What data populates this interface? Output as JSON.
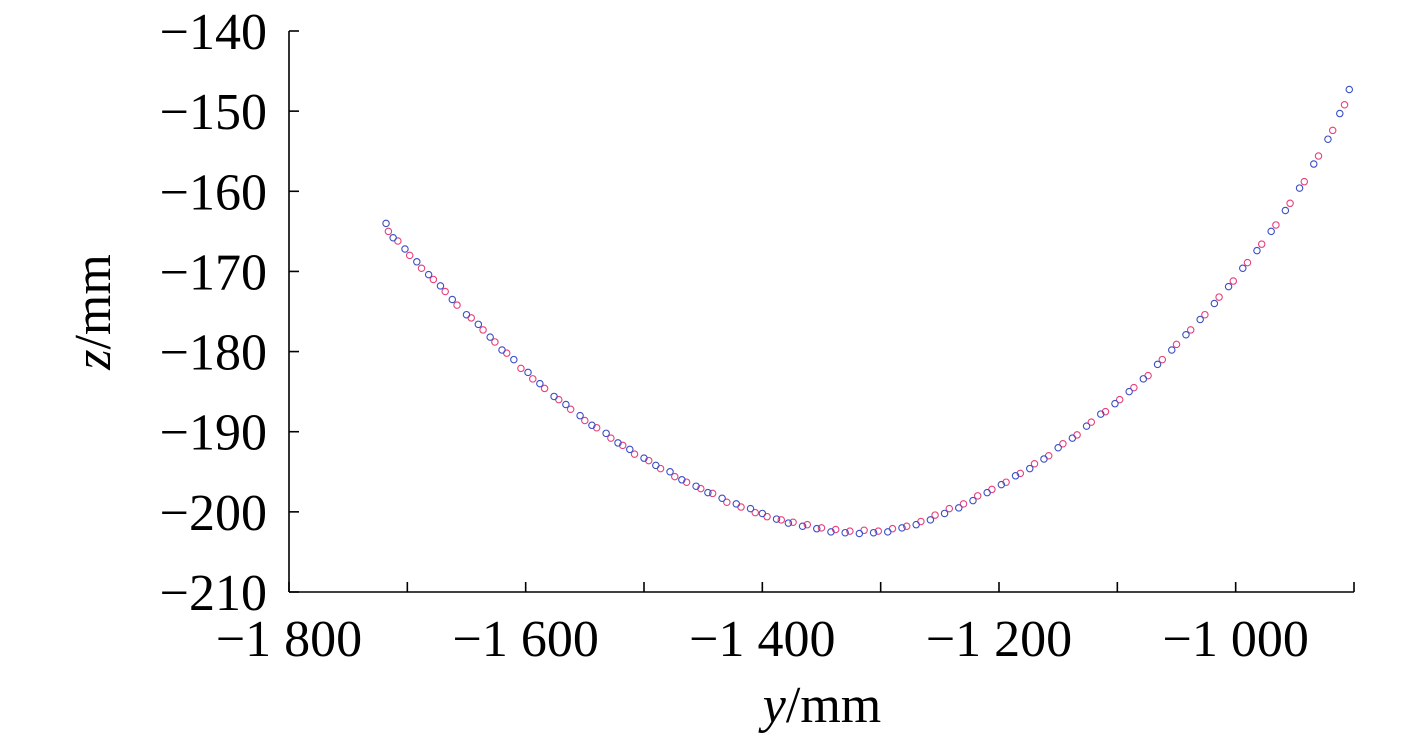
{
  "chart_data": {
    "type": "scatter",
    "title": "",
    "xlabel": {
      "var": "y",
      "unit": "/mm"
    },
    "ylabel": {
      "var": "z",
      "unit": "/mm"
    },
    "xlim": [
      -1800,
      -900
    ],
    "ylim": [
      -210,
      -140
    ],
    "x_ticks": [
      -1800,
      -1600,
      -1400,
      -1200,
      -1000
    ],
    "x_tick_labels": [
      "−1 800",
      "−1 600",
      "−1 400",
      "−1 200",
      "−1 000"
    ],
    "x_minor_ticks": [
      -1700,
      -1500,
      -1300,
      -1100,
      -900
    ],
    "y_ticks": [
      -140,
      -150,
      -160,
      -170,
      -180,
      -190,
      -200,
      -210
    ],
    "y_tick_labels": [
      "−140",
      "−150",
      "−160",
      "−170",
      "−180",
      "−190",
      "−200",
      "−210"
    ],
    "grid": false,
    "legend": "none",
    "series": [
      {
        "color": "#e8407a",
        "marker": "open-circle",
        "points": [
          [
            -1716,
            -165.0
          ],
          [
            -1708,
            -166.2
          ],
          [
            -1698,
            -168.0
          ],
          [
            -1688,
            -169.6
          ],
          [
            -1678,
            -171.0
          ],
          [
            -1668,
            -172.5
          ],
          [
            -1658,
            -174.2
          ],
          [
            -1646,
            -175.8
          ],
          [
            -1636,
            -177.3
          ],
          [
            -1626,
            -178.8
          ],
          [
            -1616,
            -180.2
          ],
          [
            -1604,
            -182.1
          ],
          [
            -1594,
            -183.4
          ],
          [
            -1584,
            -184.6
          ],
          [
            -1572,
            -186.0
          ],
          [
            -1562,
            -187.2
          ],
          [
            -1550,
            -188.6
          ],
          [
            -1540,
            -189.5
          ],
          [
            -1528,
            -190.8
          ],
          [
            -1518,
            -191.7
          ],
          [
            -1508,
            -192.8
          ],
          [
            -1496,
            -193.6
          ],
          [
            -1486,
            -194.6
          ],
          [
            -1474,
            -195.6
          ],
          [
            -1464,
            -196.3
          ],
          [
            -1452,
            -197.1
          ],
          [
            -1442,
            -197.7
          ],
          [
            -1430,
            -198.8
          ],
          [
            -1418,
            -199.4
          ],
          [
            -1406,
            -200.1
          ],
          [
            -1396,
            -200.6
          ],
          [
            -1384,
            -201.0
          ],
          [
            -1374,
            -201.3
          ],
          [
            -1362,
            -201.6
          ],
          [
            -1350,
            -202.0
          ],
          [
            -1338,
            -202.2
          ],
          [
            -1326,
            -202.4
          ],
          [
            -1314,
            -202.3
          ],
          [
            -1302,
            -202.4
          ],
          [
            -1290,
            -202.1
          ],
          [
            -1278,
            -201.8
          ],
          [
            -1266,
            -201.2
          ],
          [
            -1254,
            -200.4
          ],
          [
            -1242,
            -199.6
          ],
          [
            -1230,
            -199.0
          ],
          [
            -1218,
            -198.0
          ],
          [
            -1206,
            -197.2
          ],
          [
            -1194,
            -196.3
          ],
          [
            -1182,
            -195.2
          ],
          [
            -1170,
            -194.0
          ],
          [
            -1158,
            -193.0
          ],
          [
            -1146,
            -191.5
          ],
          [
            -1134,
            -190.4
          ],
          [
            -1122,
            -188.8
          ],
          [
            -1110,
            -187.5
          ],
          [
            -1098,
            -186.0
          ],
          [
            -1086,
            -184.5
          ],
          [
            -1074,
            -183.0
          ],
          [
            -1062,
            -181.0
          ],
          [
            -1050,
            -179.1
          ],
          [
            -1038,
            -177.3
          ],
          [
            -1026,
            -175.4
          ],
          [
            -1014,
            -173.2
          ],
          [
            -1002,
            -171.2
          ],
          [
            -990,
            -168.9
          ],
          [
            -978,
            -166.6
          ],
          [
            -966,
            -164.2
          ],
          [
            -954,
            -161.5
          ],
          [
            -942,
            -158.8
          ],
          [
            -930,
            -155.6
          ],
          [
            -918,
            -152.4
          ],
          [
            -908,
            -149.2
          ]
        ]
      },
      {
        "color": "#3a4fc4",
        "marker": "open-circle",
        "points": [
          [
            -1718,
            -164.0
          ],
          [
            -1712,
            -165.8
          ],
          [
            -1702,
            -167.2
          ],
          [
            -1692,
            -168.8
          ],
          [
            -1682,
            -170.4
          ],
          [
            -1672,
            -171.8
          ],
          [
            -1662,
            -173.5
          ],
          [
            -1650,
            -175.4
          ],
          [
            -1640,
            -176.6
          ],
          [
            -1630,
            -178.2
          ],
          [
            -1620,
            -179.8
          ],
          [
            -1610,
            -181.0
          ],
          [
            -1598,
            -182.6
          ],
          [
            -1588,
            -184.0
          ],
          [
            -1576,
            -185.6
          ],
          [
            -1566,
            -186.6
          ],
          [
            -1554,
            -188.0
          ],
          [
            -1544,
            -189.2
          ],
          [
            -1532,
            -190.2
          ],
          [
            -1522,
            -191.4
          ],
          [
            -1512,
            -192.2
          ],
          [
            -1500,
            -193.3
          ],
          [
            -1490,
            -194.2
          ],
          [
            -1478,
            -195.0
          ],
          [
            -1468,
            -196.0
          ],
          [
            -1456,
            -196.8
          ],
          [
            -1446,
            -197.6
          ],
          [
            -1434,
            -198.3
          ],
          [
            -1422,
            -199.0
          ],
          [
            -1410,
            -199.6
          ],
          [
            -1400,
            -200.2
          ],
          [
            -1388,
            -200.9
          ],
          [
            -1378,
            -201.4
          ],
          [
            -1366,
            -201.8
          ],
          [
            -1354,
            -202.1
          ],
          [
            -1342,
            -202.5
          ],
          [
            -1330,
            -202.6
          ],
          [
            -1318,
            -202.7
          ],
          [
            -1306,
            -202.6
          ],
          [
            -1294,
            -202.5
          ],
          [
            -1282,
            -202.0
          ],
          [
            -1270,
            -201.6
          ],
          [
            -1258,
            -201.0
          ],
          [
            -1246,
            -200.2
          ],
          [
            -1234,
            -199.5
          ],
          [
            -1222,
            -198.6
          ],
          [
            -1210,
            -197.6
          ],
          [
            -1198,
            -196.6
          ],
          [
            -1186,
            -195.5
          ],
          [
            -1174,
            -194.6
          ],
          [
            -1162,
            -193.4
          ],
          [
            -1150,
            -192.0
          ],
          [
            -1138,
            -190.8
          ],
          [
            -1126,
            -189.3
          ],
          [
            -1114,
            -187.8
          ],
          [
            -1102,
            -186.5
          ],
          [
            -1090,
            -185.0
          ],
          [
            -1078,
            -183.4
          ],
          [
            -1066,
            -181.6
          ],
          [
            -1054,
            -179.8
          ],
          [
            -1042,
            -177.9
          ],
          [
            -1030,
            -176.0
          ],
          [
            -1018,
            -174.0
          ],
          [
            -1006,
            -171.9
          ],
          [
            -994,
            -169.6
          ],
          [
            -982,
            -167.4
          ],
          [
            -970,
            -165.0
          ],
          [
            -958,
            -162.4
          ],
          [
            -946,
            -159.6
          ],
          [
            -934,
            -156.6
          ],
          [
            -922,
            -153.5
          ],
          [
            -912,
            -150.3
          ],
          [
            -904,
            -147.3
          ]
        ]
      }
    ]
  }
}
